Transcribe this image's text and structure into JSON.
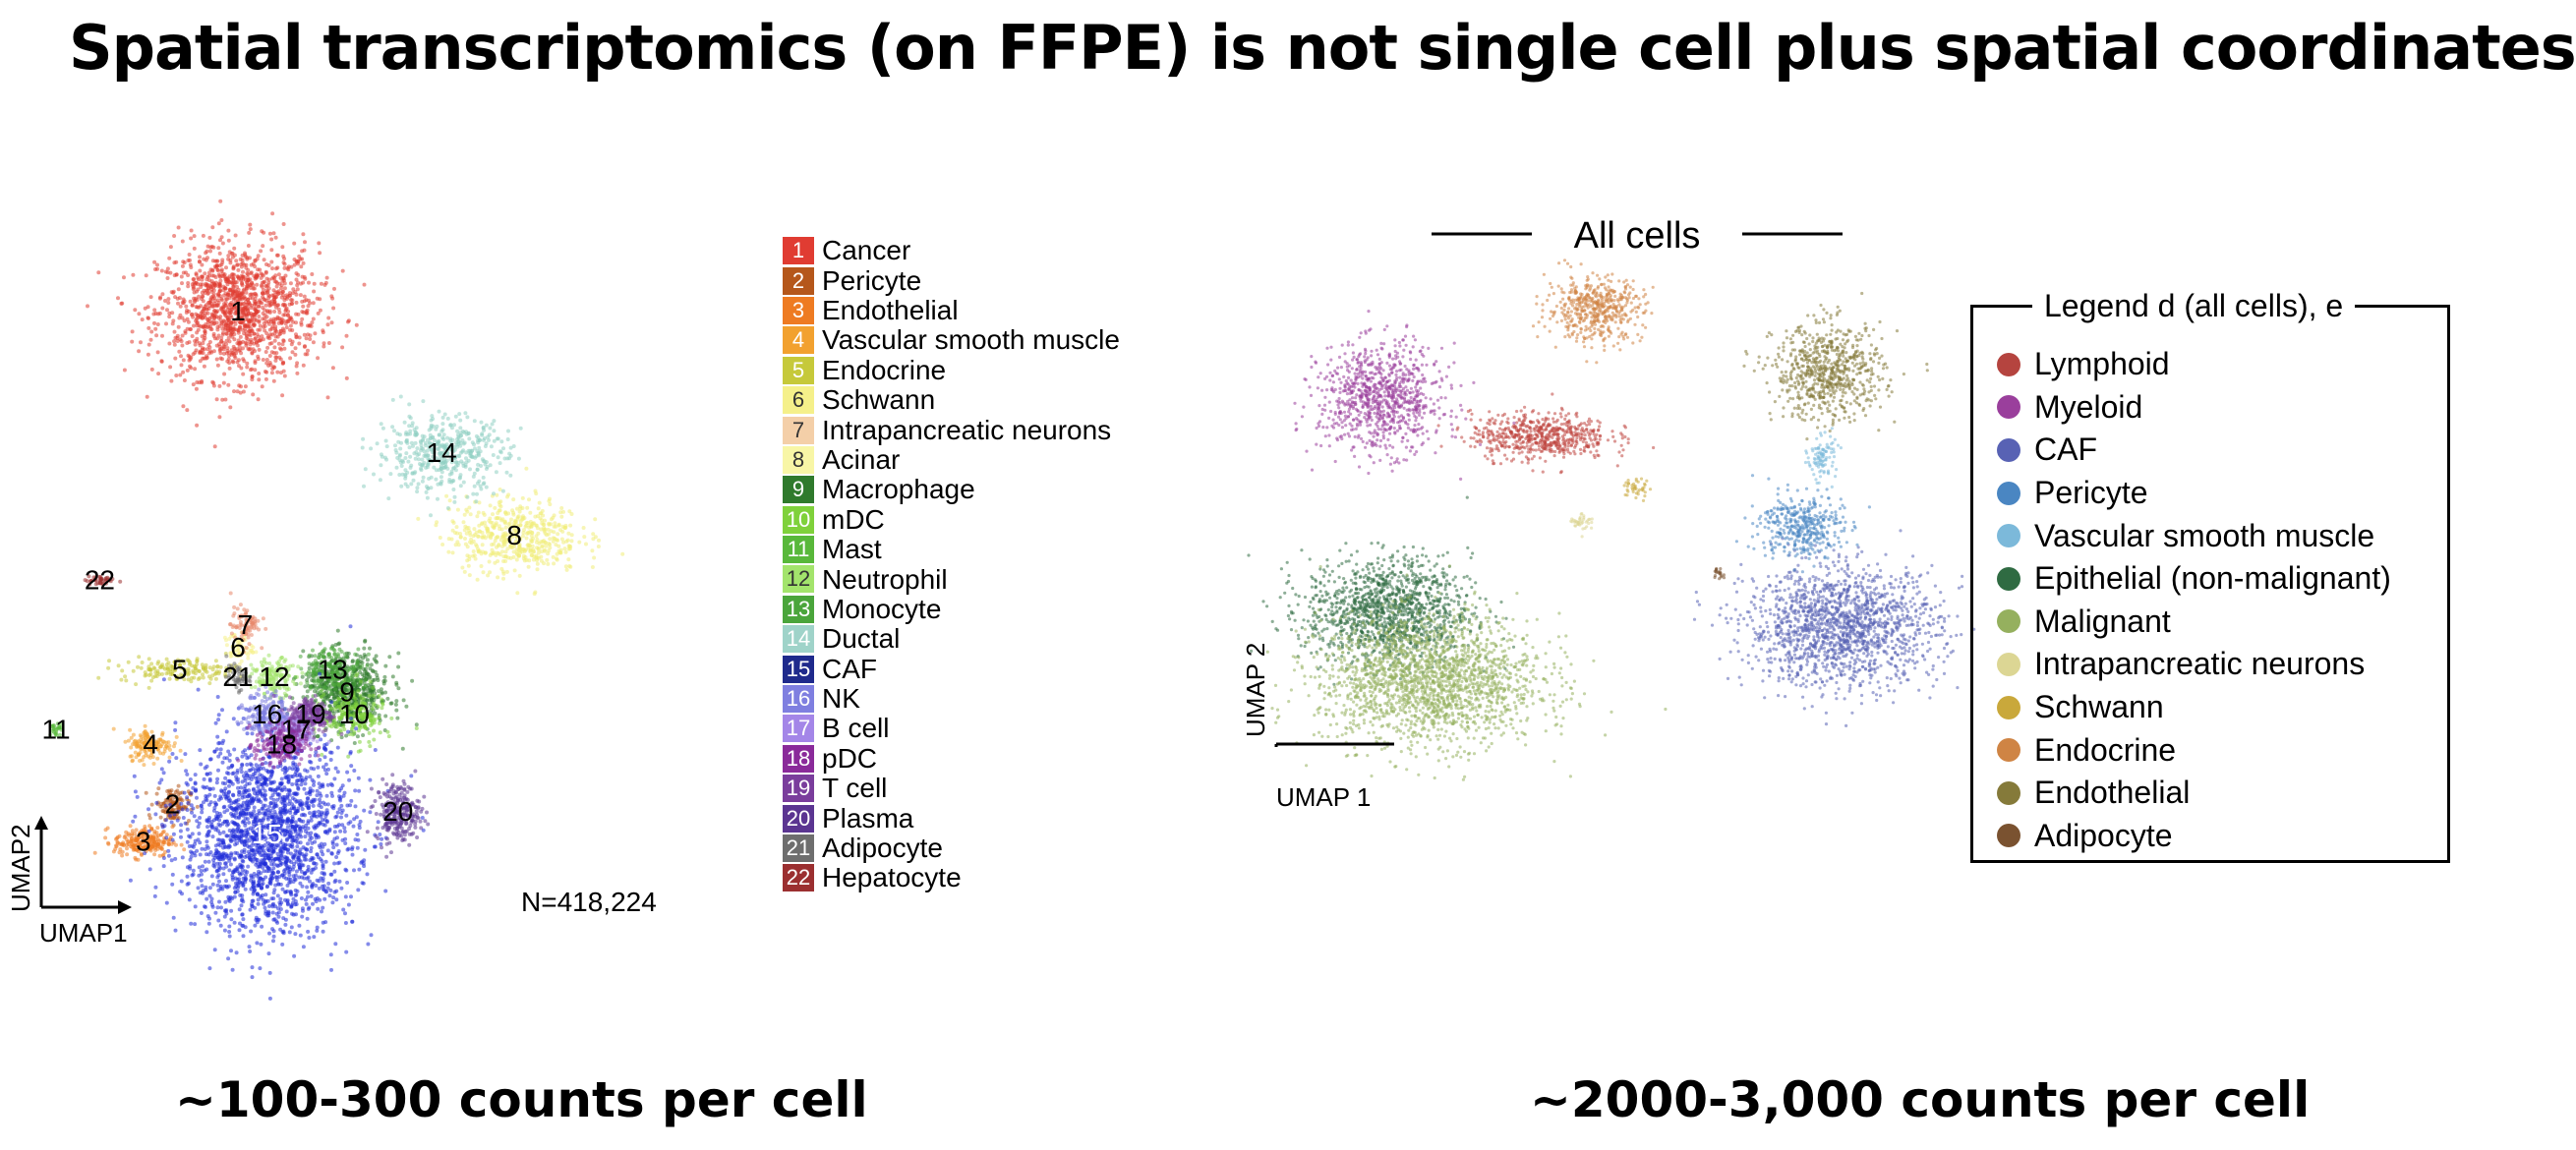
{
  "title": "Spatial transcriptomics (on FFPE) is not single cell plus spatial coordinates",
  "captions": {
    "left": "~100-300 counts per cell",
    "right": "~2000-3,000 counts per cell"
  },
  "chart_data": [
    {
      "type": "scatter",
      "xlabel": "UMAP1",
      "ylabel": "UMAP2",
      "annotation": "N=418,224",
      "legend": [
        {
          "id": "1",
          "label": "Cancer",
          "color": "#e03c32"
        },
        {
          "id": "2",
          "label": "Pericyte",
          "color": "#b5571b"
        },
        {
          "id": "3",
          "label": "Endothelial",
          "color": "#ee7b22"
        },
        {
          "id": "4",
          "label": "Vascular smooth muscle",
          "color": "#f2a12f"
        },
        {
          "id": "5",
          "label": "Endocrine",
          "color": "#c6c93a"
        },
        {
          "id": "6",
          "label": "Schwann",
          "color": "#f5f08a"
        },
        {
          "id": "7",
          "label": "Intrapancreatic neurons",
          "color": "#f4cfa8"
        },
        {
          "id": "8",
          "label": "Acinar",
          "color": "#f8f6a6"
        },
        {
          "id": "9",
          "label": "Macrophage",
          "color": "#2f7a2c"
        },
        {
          "id": "10",
          "label": "mDC",
          "color": "#7fd13b"
        },
        {
          "id": "11",
          "label": "Mast",
          "color": "#58b83a"
        },
        {
          "id": "12",
          "label": "Neutrophil",
          "color": "#a3e46c"
        },
        {
          "id": "13",
          "label": "Monocyte",
          "color": "#4aa53b"
        },
        {
          "id": "14",
          "label": "Ductal",
          "color": "#9fd3c9"
        },
        {
          "id": "15",
          "label": "CAF",
          "color": "#1f2a8c"
        },
        {
          "id": "16",
          "label": "NK",
          "color": "#7f7fe0"
        },
        {
          "id": "17",
          "label": "B cell",
          "color": "#a486e8"
        },
        {
          "id": "18",
          "label": "pDC",
          "color": "#8a2a9a"
        },
        {
          "id": "19",
          "label": "T cell",
          "color": "#7a3d9c"
        },
        {
          "id": "20",
          "label": "Plasma",
          "color": "#5b3591"
        },
        {
          "id": "21",
          "label": "Adipocyte",
          "color": "#6e6e6e"
        },
        {
          "id": "22",
          "label": "Hepatocyte",
          "color": "#9b2f30"
        }
      ],
      "clusters": [
        {
          "label": "1",
          "color": "#e03c32",
          "x": 0.3,
          "y": 0.82,
          "sx": 0.055,
          "sy": 0.045,
          "n": 1400
        },
        {
          "label": "2",
          "color": "#b5571b",
          "x": 0.21,
          "y": 0.16,
          "sx": 0.012,
          "sy": 0.012,
          "n": 120
        },
        {
          "label": "3",
          "color": "#ee7b22",
          "x": 0.17,
          "y": 0.11,
          "sx": 0.02,
          "sy": 0.01,
          "n": 220
        },
        {
          "label": "4",
          "color": "#f2a12f",
          "x": 0.18,
          "y": 0.24,
          "sx": 0.015,
          "sy": 0.01,
          "n": 150
        },
        {
          "label": "5",
          "color": "#c6c93a",
          "x": 0.22,
          "y": 0.34,
          "sx": 0.04,
          "sy": 0.008,
          "n": 160
        },
        {
          "label": "6",
          "color": "#f5f08a",
          "x": 0.3,
          "y": 0.37,
          "sx": 0.01,
          "sy": 0.01,
          "n": 60
        },
        {
          "label": "7",
          "color": "#e8866a",
          "x": 0.31,
          "y": 0.4,
          "sx": 0.01,
          "sy": 0.012,
          "n": 80
        },
        {
          "label": "8",
          "color": "#f1ec78",
          "x": 0.68,
          "y": 0.52,
          "sx": 0.045,
          "sy": 0.025,
          "n": 500
        },
        {
          "label": "9",
          "color": "#2f7a2c",
          "x": 0.45,
          "y": 0.31,
          "sx": 0.03,
          "sy": 0.025,
          "n": 600
        },
        {
          "label": "10",
          "color": "#7fd13b",
          "x": 0.46,
          "y": 0.28,
          "sx": 0.02,
          "sy": 0.02,
          "n": 200
        },
        {
          "label": "11",
          "color": "#58b83a",
          "x": 0.05,
          "y": 0.26,
          "sx": 0.004,
          "sy": 0.004,
          "n": 25
        },
        {
          "label": "12",
          "color": "#a3e46c",
          "x": 0.35,
          "y": 0.33,
          "sx": 0.015,
          "sy": 0.012,
          "n": 150
        },
        {
          "label": "13",
          "color": "#4aa53b",
          "x": 0.43,
          "y": 0.34,
          "sx": 0.02,
          "sy": 0.015,
          "n": 200
        },
        {
          "label": "14",
          "color": "#8fcfc2",
          "x": 0.58,
          "y": 0.63,
          "sx": 0.045,
          "sy": 0.025,
          "n": 450
        },
        {
          "label": "15",
          "color": "#1f2bd9",
          "x": 0.34,
          "y": 0.12,
          "sx": 0.06,
          "sy": 0.065,
          "n": 2000
        },
        {
          "label": "16",
          "color": "#7f7fe0",
          "x": 0.34,
          "y": 0.28,
          "sx": 0.015,
          "sy": 0.015,
          "n": 180
        },
        {
          "label": "17",
          "color": "#a486e8",
          "x": 0.38,
          "y": 0.26,
          "sx": 0.015,
          "sy": 0.012,
          "n": 160
        },
        {
          "label": "18",
          "color": "#8a2a9a",
          "x": 0.36,
          "y": 0.24,
          "sx": 0.018,
          "sy": 0.014,
          "n": 220
        },
        {
          "label": "19",
          "color": "#7a3d9c",
          "x": 0.4,
          "y": 0.28,
          "sx": 0.015,
          "sy": 0.012,
          "n": 200
        },
        {
          "label": "20",
          "color": "#5b3591",
          "x": 0.52,
          "y": 0.15,
          "sx": 0.015,
          "sy": 0.02,
          "n": 250
        },
        {
          "label": "21",
          "color": "#6e6e6e",
          "x": 0.3,
          "y": 0.33,
          "sx": 0.008,
          "sy": 0.008,
          "n": 50
        },
        {
          "label": "22",
          "color": "#9b2f30",
          "x": 0.11,
          "y": 0.46,
          "sx": 0.01,
          "sy": 0.004,
          "n": 40
        }
      ]
    },
    {
      "type": "scatter",
      "title": "All cells",
      "xlabel": "UMAP 1",
      "ylabel": "UMAP 2",
      "legend_title": "Legend d (all cells), e",
      "legend": [
        {
          "label": "Lymphoid",
          "color": "#b5443f"
        },
        {
          "label": "Myeloid",
          "color": "#9a3f9c"
        },
        {
          "label": "CAF",
          "color": "#5862b4"
        },
        {
          "label": "Pericyte",
          "color": "#4a86c2"
        },
        {
          "label": "Vascular smooth muscle",
          "color": "#7cb9da"
        },
        {
          "label": "Epithelial (non-malignant)",
          "color": "#2f6b42"
        },
        {
          "label": "Malignant",
          "color": "#95b05e"
        },
        {
          "label": "Intrapancreatic neurons",
          "color": "#dcd694"
        },
        {
          "label": "Schwann",
          "color": "#c9a83b"
        },
        {
          "label": "Endocrine",
          "color": "#cf8444"
        },
        {
          "label": "Endothelial",
          "color": "#857a3a"
        },
        {
          "label": "Adipocyte",
          "color": "#7a5230"
        }
      ],
      "clusters": [
        {
          "label": "Lymphoid",
          "color": "#c0463f",
          "x": 0.38,
          "y": 0.66,
          "sx": 0.05,
          "sy": 0.022,
          "n": 600
        },
        {
          "label": "Myeloid",
          "color": "#9a3f9c",
          "x": 0.15,
          "y": 0.73,
          "sx": 0.045,
          "sy": 0.05,
          "n": 900
        },
        {
          "label": "CAF",
          "color": "#5862b4",
          "x": 0.82,
          "y": 0.3,
          "sx": 0.07,
          "sy": 0.055,
          "n": 1600
        },
        {
          "label": "Pericyte",
          "color": "#4a86c2",
          "x": 0.76,
          "y": 0.49,
          "sx": 0.03,
          "sy": 0.03,
          "n": 400
        },
        {
          "label": "Vascular smooth muscle",
          "color": "#7cb9da",
          "x": 0.79,
          "y": 0.62,
          "sx": 0.01,
          "sy": 0.02,
          "n": 100
        },
        {
          "label": "Epithelial (non-malignant)",
          "color": "#2f6b42",
          "x": 0.16,
          "y": 0.33,
          "sx": 0.06,
          "sy": 0.05,
          "n": 1300
        },
        {
          "label": "Malignant",
          "color": "#95b05e",
          "x": 0.22,
          "y": 0.2,
          "sx": 0.08,
          "sy": 0.06,
          "n": 2000
        },
        {
          "label": "Intrapancreatic neurons",
          "color": "#dcd694",
          "x": 0.44,
          "y": 0.5,
          "sx": 0.008,
          "sy": 0.01,
          "n": 40
        },
        {
          "label": "Schwann",
          "color": "#c9a83b",
          "x": 0.52,
          "y": 0.56,
          "sx": 0.01,
          "sy": 0.01,
          "n": 40
        },
        {
          "label": "Endocrine",
          "color": "#cf8444",
          "x": 0.46,
          "y": 0.9,
          "sx": 0.035,
          "sy": 0.03,
          "n": 500
        },
        {
          "label": "Endothelial",
          "color": "#857a3a",
          "x": 0.8,
          "y": 0.78,
          "sx": 0.04,
          "sy": 0.045,
          "n": 700
        },
        {
          "label": "Adipocyte",
          "color": "#7a5230",
          "x": 0.64,
          "y": 0.4,
          "sx": 0.006,
          "sy": 0.006,
          "n": 20
        }
      ]
    }
  ]
}
